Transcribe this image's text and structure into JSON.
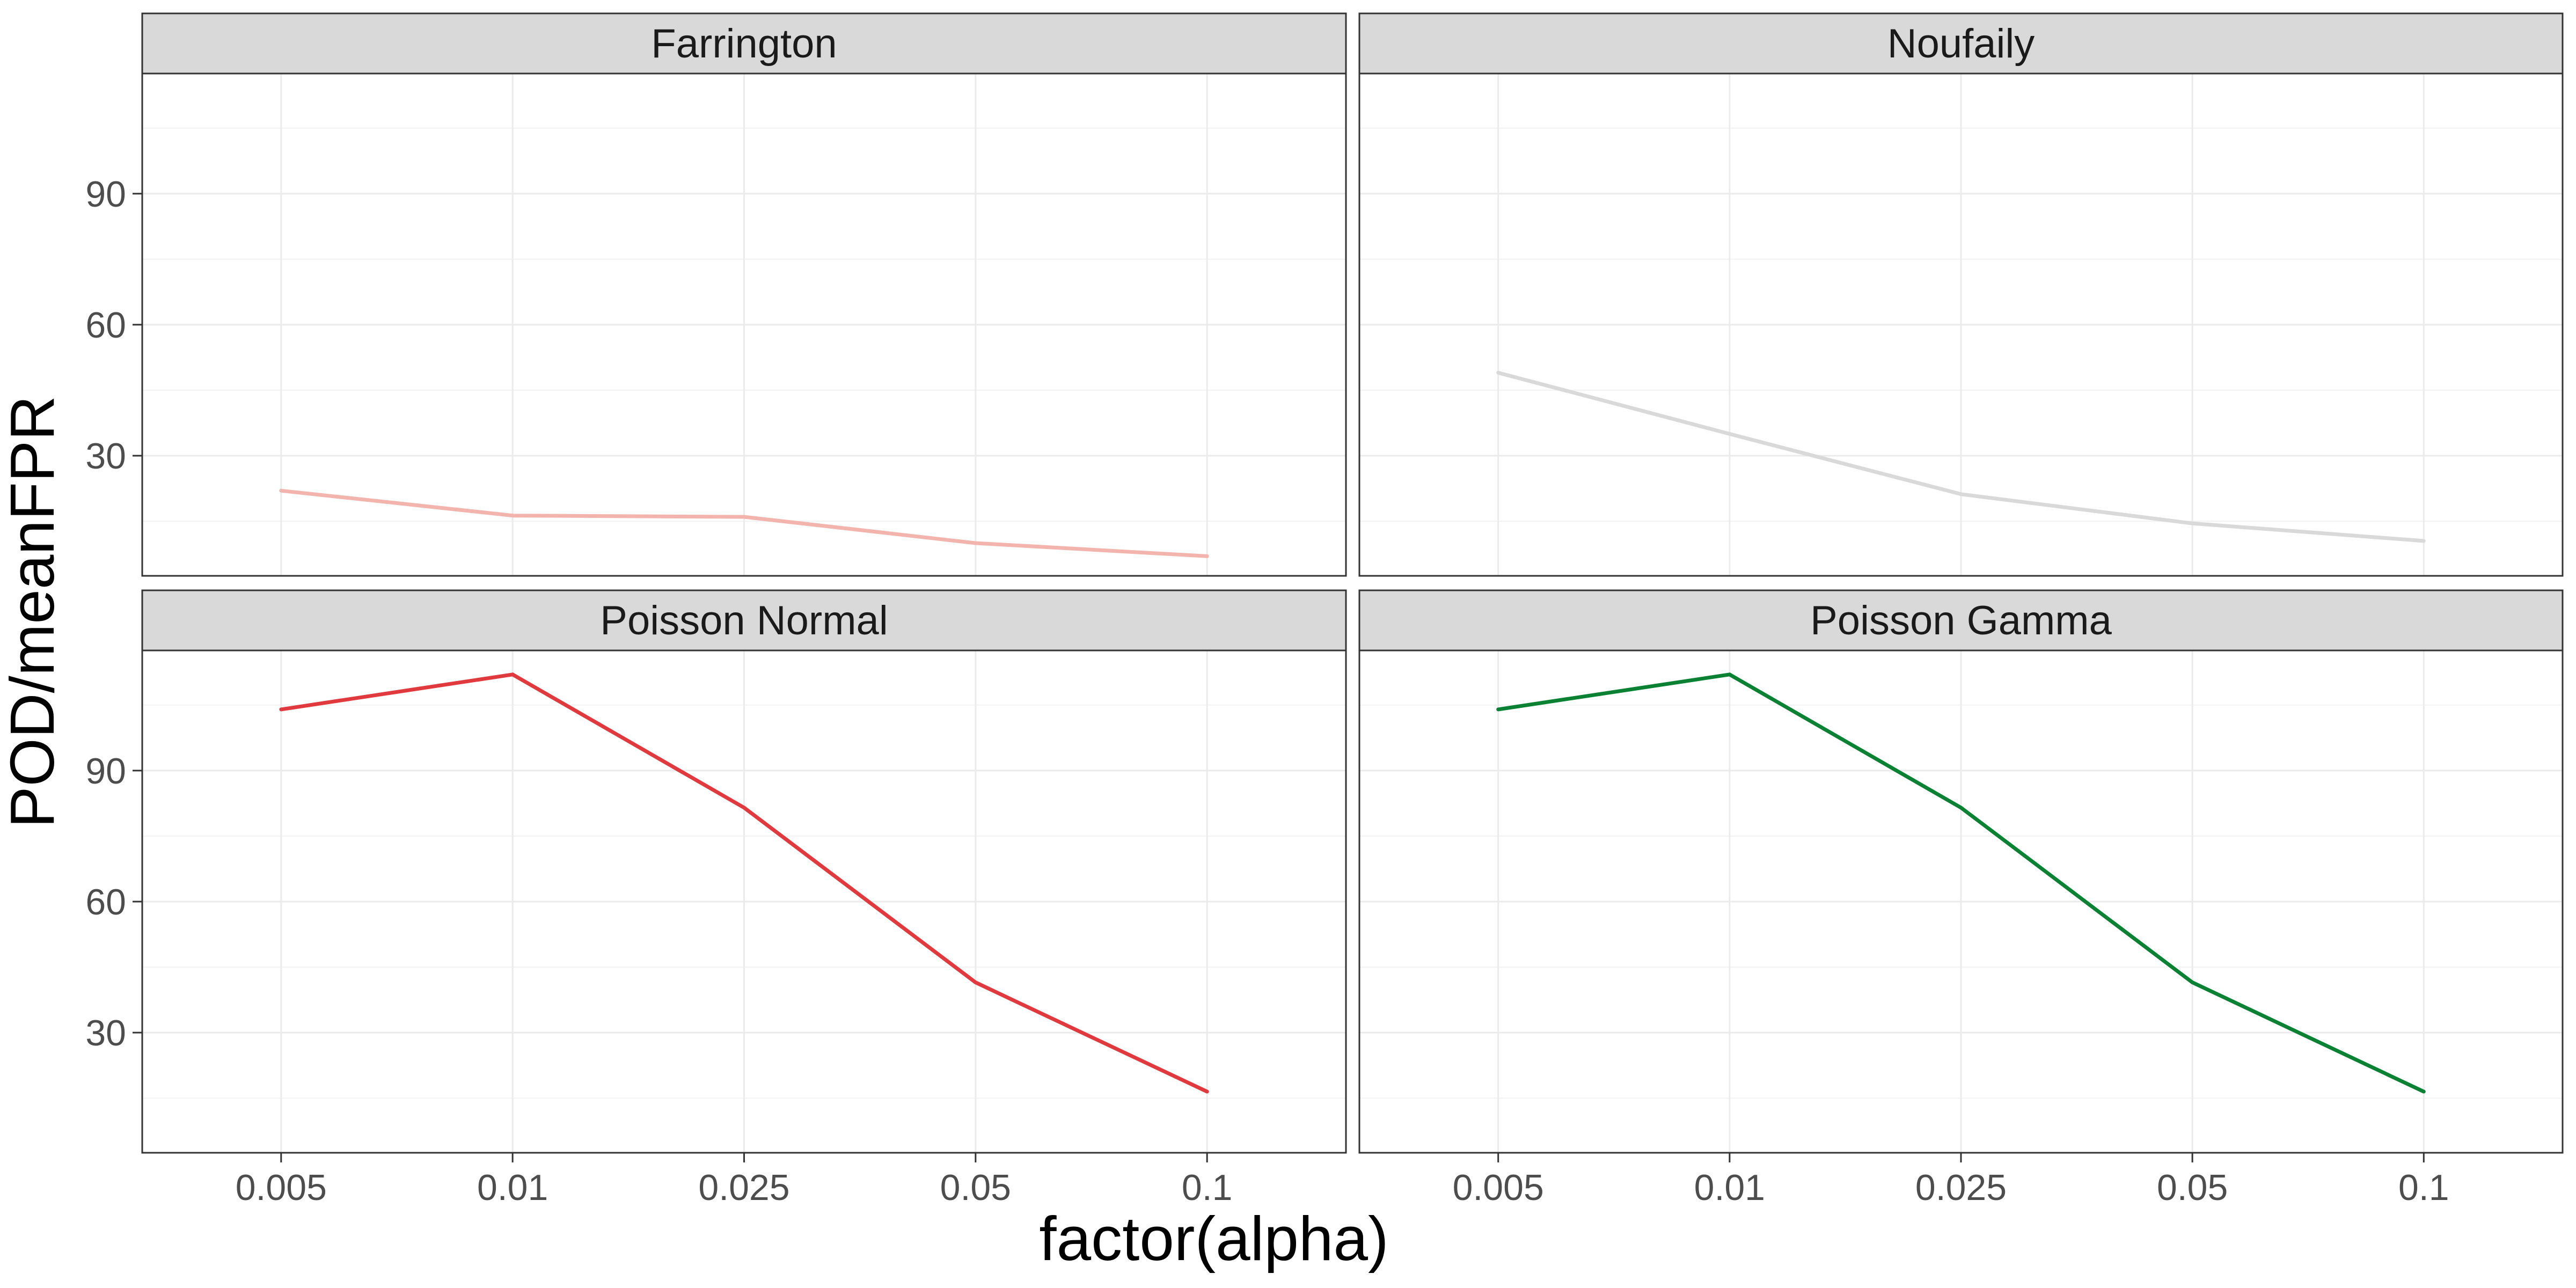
{
  "chart_data": {
    "type": "line",
    "layout": "facet-grid 2x2",
    "xlabel": "factor(alpha)",
    "ylabel": "POD/meanFPR",
    "categories": [
      "0.005",
      "0.01",
      "0.025",
      "0.05",
      "0.1"
    ],
    "yticks": [
      30,
      60,
      90
    ],
    "ylim": [
      2.5,
      117.5
    ],
    "grid": true,
    "panels": [
      {
        "name": "Farrington",
        "color": "#F4B4AE",
        "values": [
          22,
          16.3,
          16,
          10,
          7
        ]
      },
      {
        "name": "Noufaily",
        "color": "#D9D9D9",
        "values": [
          49,
          35,
          21.2,
          14.5,
          10.5
        ]
      },
      {
        "name": "Poisson Normal",
        "color": "#E0393E",
        "values": [
          104,
          112,
          81.5,
          41.5,
          16.5
        ]
      },
      {
        "name": "Poisson Gamma",
        "color": "#0A8133",
        "values": [
          104,
          112,
          81.5,
          41.5,
          16.5
        ]
      }
    ]
  }
}
